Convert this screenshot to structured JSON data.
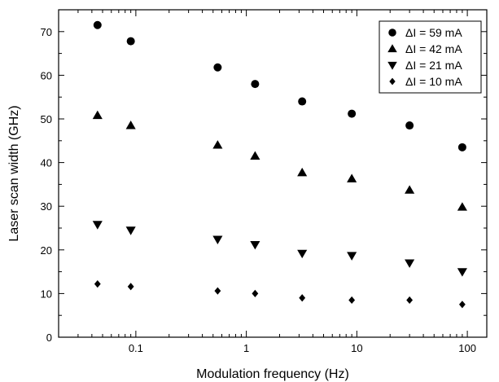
{
  "chart_data": {
    "type": "scatter",
    "xlabel": "Modulation frequency (Hz)",
    "ylabel": "Laser  scan width (GHz)",
    "xscale": "log",
    "xlim": [
      0.02,
      150
    ],
    "ylim": [
      0,
      75
    ],
    "x_ticks": [
      {
        "value": 0.1,
        "label": "0.1"
      },
      {
        "value": 1,
        "label": "1"
      },
      {
        "value": 10,
        "label": "10"
      },
      {
        "value": 100,
        "label": "100"
      }
    ],
    "y_ticks": [
      {
        "value": 0,
        "label": "0"
      },
      {
        "value": 10,
        "label": "10"
      },
      {
        "value": 20,
        "label": "20"
      },
      {
        "value": 30,
        "label": "30"
      },
      {
        "value": 40,
        "label": "40"
      },
      {
        "value": 50,
        "label": "50"
      },
      {
        "value": 60,
        "label": "60"
      },
      {
        "value": 70,
        "label": "70"
      }
    ],
    "grid": false,
    "legend_position": "top-right",
    "x": [
      0.045,
      0.09,
      0.55,
      1.2,
      3.2,
      9,
      30,
      90
    ],
    "series": [
      {
        "name": "ΔI = 59 mA",
        "marker": "circle",
        "values": [
          71.5,
          67.8,
          61.8,
          58.0,
          54.0,
          51.2,
          48.5,
          43.5
        ]
      },
      {
        "name": "ΔI = 42 mA",
        "marker": "triangle-up",
        "values": [
          50.8,
          48.5,
          44.0,
          41.5,
          37.7,
          36.3,
          33.7,
          29.8
        ]
      },
      {
        "name": "ΔI = 21 mA",
        "marker": "triangle-down",
        "values": [
          25.8,
          24.5,
          22.4,
          21.2,
          19.2,
          18.7,
          17.0,
          15.0
        ]
      },
      {
        "name": "ΔI = 10 mA",
        "marker": "diamond",
        "values": [
          12.2,
          11.6,
          10.6,
          10.0,
          9.0,
          8.5,
          8.5,
          7.5
        ]
      }
    ],
    "colors": {
      "marker": "#000000",
      "axis": "#000000",
      "background": "#ffffff"
    }
  }
}
